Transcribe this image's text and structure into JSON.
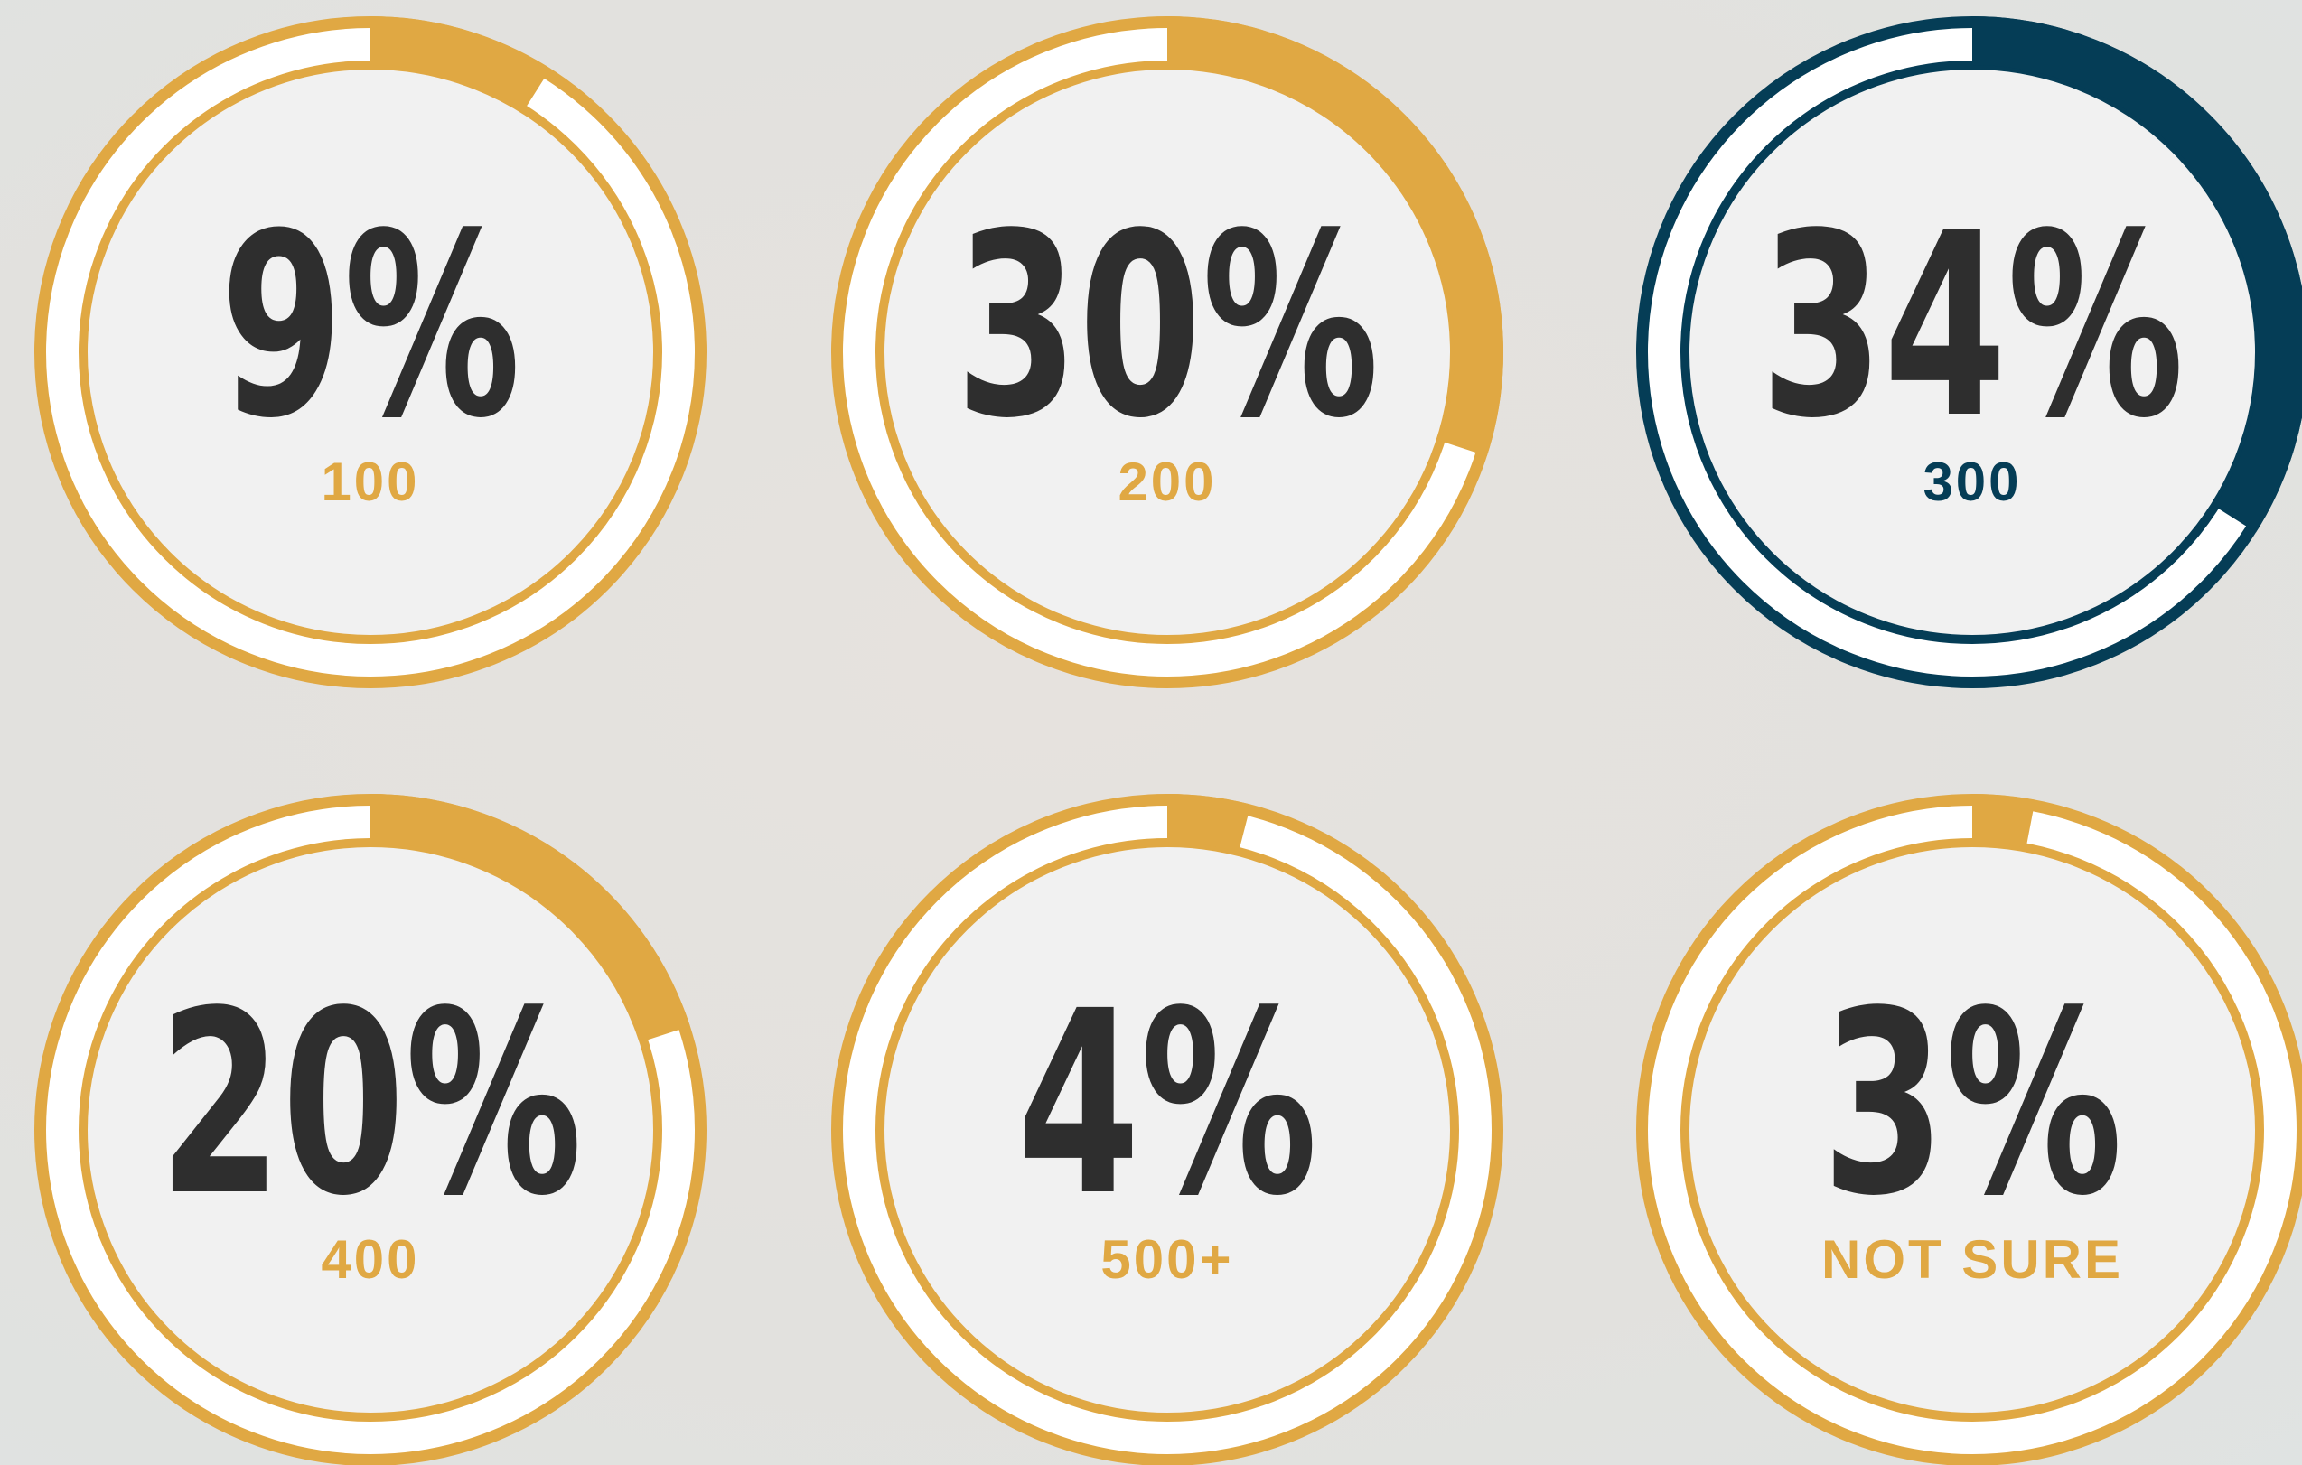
{
  "chart_data": {
    "type": "radial",
    "categories": [
      "100",
      "200",
      "300",
      "400",
      "500+",
      "NOT SURE"
    ],
    "values": [
      9,
      30,
      34,
      20,
      4,
      3
    ],
    "value_labels": [
      "9%",
      "30%",
      "34%",
      "20%",
      "4%",
      "3%"
    ],
    "colors": [
      "#e0a843",
      "#e0a843",
      "#053d56",
      "#e0a843",
      "#e0a843",
      "#e0a843"
    ],
    "ylim": [
      0,
      100
    ]
  }
}
